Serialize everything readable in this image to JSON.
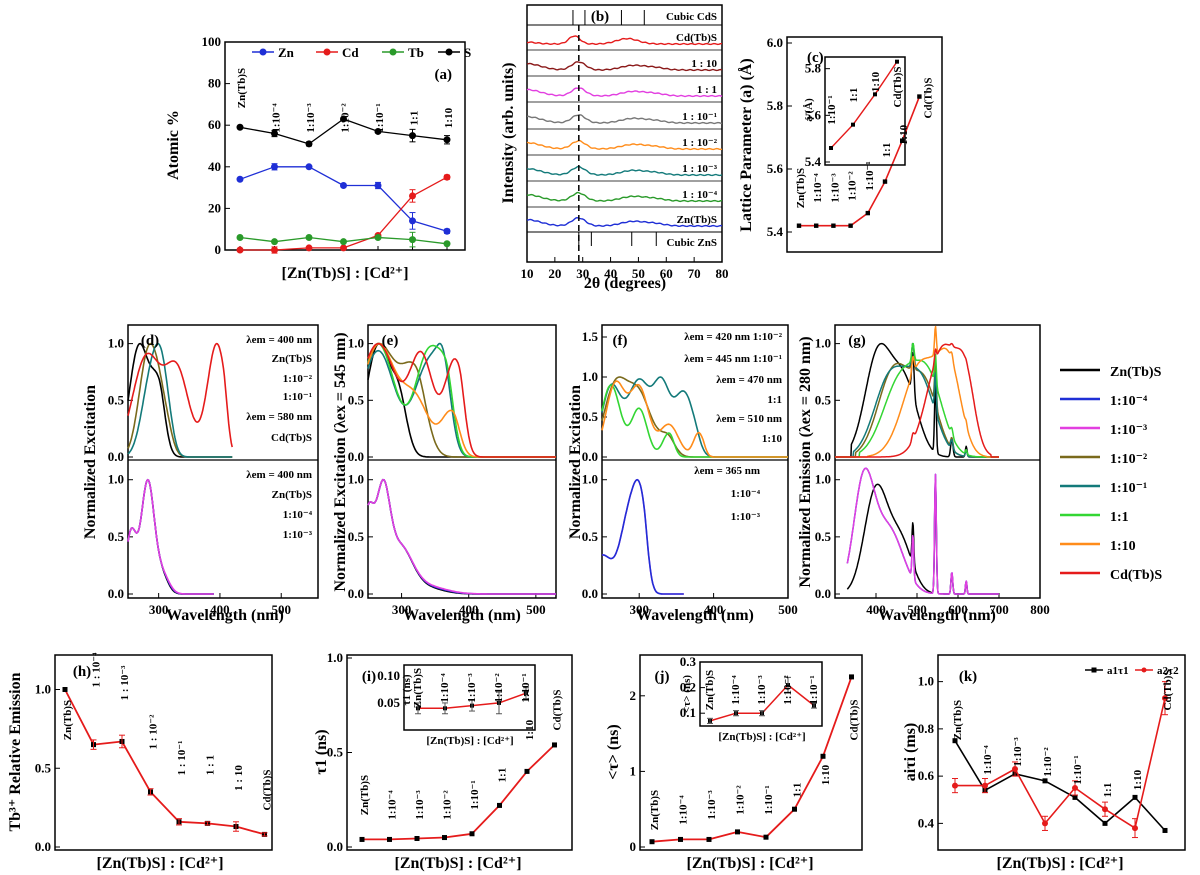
{
  "colors": {
    "ZnTbS": "#000000",
    "r1e4": "#1f2fd6",
    "r1e3": "#e23fe0",
    "r1e2": "#7a6a1c",
    "r1e1": "#137a7a",
    "r1_1": "#33d633",
    "r1_10": "#ff8c1a",
    "CdTbS": "#e51b1b",
    "fit_red": "#e51b1b"
  },
  "legend": {
    "items": [
      {
        "label": "Zn(Tb)S",
        "color": "#000000"
      },
      {
        "label": "1:10⁻⁴",
        "color": "#1f2fd6"
      },
      {
        "label": "1:10⁻³",
        "color": "#e23fe0"
      },
      {
        "label": "1:10⁻²",
        "color": "#7a6a1c"
      },
      {
        "label": "1:10⁻¹",
        "color": "#137a7a"
      },
      {
        "label": "1:1",
        "color": "#33d633"
      },
      {
        "label": "1:10",
        "color": "#ff8c1a"
      },
      {
        "label": "Cd(Tb)S",
        "color": "#e51b1b"
      }
    ]
  },
  "chart_data": [
    {
      "id": "a",
      "panel_label": "(a)",
      "type": "line",
      "xlabel": "[Zn(Tb)S] : [Cd²⁺]",
      "ylabel": "Atomic %",
      "ylim": [
        0,
        100
      ],
      "yticks": [
        "0",
        "20",
        "40",
        "60",
        "80",
        "100"
      ],
      "categories": [
        "Zn(Tb)S",
        "1:10⁻⁴",
        "1:10⁻³",
        "1:10⁻²",
        "1:10⁻¹",
        "1:1",
        "1:10"
      ],
      "series": [
        {
          "name": "Zn",
          "color": "#1f2fd6",
          "values": [
            34,
            40,
            40,
            31,
            31,
            14,
            9
          ]
        },
        {
          "name": "Cd",
          "color": "#e51b1b",
          "values": [
            0,
            0,
            1,
            1,
            7,
            26,
            35
          ]
        },
        {
          "name": "Tb",
          "color": "#2a9a2a",
          "values": [
            6,
            4,
            6,
            4,
            6,
            5,
            3
          ]
        },
        {
          "name": "S",
          "color": "#000000",
          "values": [
            59,
            56,
            51,
            63,
            57,
            55,
            53
          ]
        }
      ]
    },
    {
      "id": "b",
      "panel_label": "(b)",
      "type": "line",
      "xlabel": "2θ (degrees)",
      "ylabel": "Intensity (arb. units)",
      "xlim": [
        10,
        80
      ],
      "xticks": [
        "10",
        "20",
        "30",
        "40",
        "50",
        "60",
        "70",
        "80"
      ],
      "reference_top": {
        "label": "Cubic CdS",
        "peaks": [
          26.5,
          30.8,
          43.9,
          52.1
        ]
      },
      "reference_bottom": {
        "label": "Cubic ZnS",
        "peaks": [
          28.6,
          33.1,
          47.6,
          56.4
        ]
      },
      "dashed_line_x": 28.6,
      "series": [
        {
          "name": "Cd(Tb)S",
          "label": "Cd(Tb)S",
          "color": "#e51b1b"
        },
        {
          "name": "1:10",
          "label": "1 : 10",
          "color": "#8b1a1a"
        },
        {
          "name": "1:1",
          "label": "1 : 1",
          "color": "#e23fe0"
        },
        {
          "name": "1:10⁻¹",
          "label": "1 : 10⁻¹",
          "color": "#777777"
        },
        {
          "name": "1:10⁻²",
          "label": "1 : 10⁻²",
          "color": "#ff8c1a"
        },
        {
          "name": "1:10⁻³",
          "label": "1 : 10⁻³",
          "color": "#137a7a"
        },
        {
          "name": "1:10⁻⁴",
          "label": "1 : 10⁻⁴",
          "color": "#2a9a2a"
        },
        {
          "name": "Zn(Tb)S",
          "label": "Zn(Tb)S",
          "color": "#1f2fd6"
        }
      ]
    },
    {
      "id": "c",
      "panel_label": "(c)",
      "type": "line",
      "xlabel": "",
      "ylabel": "Lattice Parameter (a) (Å)",
      "ylim": [
        5.4,
        6.0
      ],
      "yticks": [
        "5.4",
        "5.6",
        "5.8",
        "6.0"
      ],
      "categories": [
        "Zn(Tb)S",
        "1:10⁻⁴",
        "1:10⁻³",
        "1:10⁻²",
        "1:10⁻¹",
        "1:1",
        "1:10",
        "Cd(Tb)S"
      ],
      "values": [
        5.42,
        5.42,
        5.42,
        5.42,
        5.46,
        5.56,
        5.69,
        5.83
      ],
      "inset": {
        "ylabel": "a (Å)",
        "ylim": [
          5.4,
          5.85
        ],
        "yticks": [
          "5.4",
          "5.6",
          "5.8"
        ],
        "categories": [
          "1:10⁻¹",
          "1:1",
          "1:10",
          "Cd(Tb)S"
        ],
        "values": [
          5.46,
          5.56,
          5.69,
          5.83
        ]
      }
    },
    {
      "id": "d",
      "panel_label": "(d)",
      "type": "line",
      "xlabel": "Wavelength (nm)",
      "ylabel": "Normalized Excitation",
      "xlim": [
        250,
        560
      ],
      "xticks": [
        "300",
        "400",
        "500"
      ],
      "top_annotations": [
        "λem = 400 nm",
        "Zn(Tb)S",
        "1:10⁻²",
        "1:10⁻¹",
        "λem = 580 nm",
        "Cd(Tb)S"
      ],
      "bottom_annotations": [
        "λem = 400 nm",
        "Zn(Tb)S",
        "1:10⁻⁴",
        "1:10⁻³"
      ],
      "yticks": [
        "0.0",
        "0.5",
        "1.0"
      ]
    },
    {
      "id": "e",
      "panel_label": "(e)",
      "type": "line",
      "xlabel": "Wavelength (nm)",
      "ylabel": "Normalized Excitation (λex = 545 nm)",
      "xlim": [
        250,
        530
      ],
      "xticks": [
        "300",
        "400",
        "500"
      ],
      "yticks": [
        "0.0",
        "0.5",
        "1.0"
      ]
    },
    {
      "id": "f",
      "panel_label": "(f)",
      "type": "line",
      "xlabel": "Wavelength (nm)",
      "ylabel": "Normalized Excitation",
      "xlim": [
        250,
        500
      ],
      "xticks": [
        "300",
        "400",
        "500"
      ],
      "top_yticks": [
        "0.0",
        "0.5",
        "1.0",
        "1.5"
      ],
      "yticks": [
        "0.0",
        "0.5",
        "1.0"
      ],
      "top_annotations": [
        "λem = 420 nm 1:10⁻²",
        "λem = 445 nm 1:10⁻¹",
        "λem = 470 nm",
        "1:1",
        "λem = 510 nm",
        "1:10"
      ],
      "bottom_annotations": [
        "λem = 365 nm",
        "1:10⁻⁴",
        "1:10⁻³"
      ]
    },
    {
      "id": "g",
      "panel_label": "(g)",
      "type": "line",
      "xlabel": "Wavelength (nm)",
      "ylabel": "Normalized Emission (λex = 280 nm)",
      "xlim": [
        300,
        800
      ],
      "xticks": [
        "400",
        "500",
        "600",
        "700",
        "800"
      ],
      "yticks": [
        "0.0",
        "0.5",
        "1.0"
      ]
    },
    {
      "id": "h",
      "panel_label": "(h)",
      "type": "line",
      "xlabel": "[Zn(Tb)S] : [Cd²⁺]",
      "ylabel": "Tb³⁺ Relative Emission",
      "ylim": [
        0,
        1.2
      ],
      "yticks": [
        "0.0",
        "0.5",
        "1.0"
      ],
      "categories": [
        "Zn(Tb)S",
        "1 : 10⁻⁴",
        "1 : 10⁻³",
        "1 : 10⁻²",
        "1 : 10⁻¹",
        "1 : 1",
        "1 : 10",
        "Cd(Tb)S"
      ],
      "values": [
        1.0,
        0.65,
        0.67,
        0.35,
        0.16,
        0.15,
        0.13,
        0.08
      ]
    },
    {
      "id": "i",
      "panel_label": "(i)",
      "type": "line",
      "xlabel": "[Zn(Tb)S] : [Cd²⁺]",
      "ylabel": "τ1 (ns)",
      "ylim": [
        0,
        1.0
      ],
      "yticks": [
        "0.0",
        "0.5",
        "1.0"
      ],
      "categories": [
        "Zn(Tb)S",
        "1:10⁻⁴",
        "1:10⁻³",
        "1:10⁻²",
        "1:10⁻¹",
        "1:1",
        "1:10",
        "Cd(Tb)S"
      ],
      "values": [
        0.04,
        0.04,
        0.045,
        0.05,
        0.07,
        0.22,
        0.4,
        0.54
      ],
      "inset": {
        "ylabel": "τ1 (ns)",
        "xlabel": "[Zn(Tb)S] : [Cd²⁺]",
        "ylim": [
          0.0,
          0.12
        ],
        "yticks": [
          "0.05",
          "0.10"
        ],
        "categories": [
          "Zn(Tb)S",
          "1:10⁻⁴",
          "1:10⁻³",
          "1:10⁻²",
          "1:10⁻¹"
        ],
        "values": [
          0.04,
          0.04,
          0.045,
          0.05,
          0.068
        ]
      }
    },
    {
      "id": "j",
      "panel_label": "(j)",
      "type": "line",
      "xlabel": "[Zn(Tb)S] : [Cd²⁺]",
      "ylabel": "<τ> (ns)",
      "ylim": [
        0,
        2.5
      ],
      "yticks": [
        "0",
        "1",
        "2"
      ],
      "categories": [
        "Zn(Tb)S",
        "1:10⁻⁴",
        "1:10⁻³",
        "1:10⁻²",
        "1:10⁻¹",
        "1:1",
        "1:10",
        "Cd(Tb)S"
      ],
      "values": [
        0.07,
        0.1,
        0.1,
        0.2,
        0.13,
        0.5,
        1.2,
        2.25
      ],
      "inset": {
        "ylabel": "<τ> (ns)",
        "xlabel": "[Zn(Tb)S] : [Cd²⁺]",
        "ylim": [
          0.05,
          0.3
        ],
        "yticks": [
          "0.1",
          "0.2",
          "0.3"
        ],
        "categories": [
          "Zn(Tb)S",
          "1:10⁻⁴",
          "1:10⁻³",
          "1:10⁻²",
          "1:10⁻¹"
        ],
        "values": [
          0.07,
          0.1,
          0.1,
          0.21,
          0.13
        ]
      }
    },
    {
      "id": "k",
      "panel_label": "(k)",
      "type": "line",
      "xlabel": "[Zn(Tb)S] : [Cd²⁺]",
      "ylabel": "aiτi (ms)",
      "ylim": [
        0.3,
        1.1
      ],
      "yticks": [
        "0.4",
        "0.6",
        "0.8",
        "1.0"
      ],
      "categories": [
        "Zn(Tb)S",
        "1:10⁻⁴",
        "1:10⁻³",
        "1:10⁻²",
        "1:10⁻¹",
        "1:1",
        "1:10",
        "Cd(Tb)S"
      ],
      "series": [
        {
          "name": "a1τ1",
          "color": "#000000",
          "values": [
            0.75,
            0.54,
            0.61,
            0.58,
            0.51,
            0.4,
            0.51,
            0.37
          ]
        },
        {
          "name": "a2τ2",
          "color": "#e51b1b",
          "values": [
            0.56,
            0.56,
            0.63,
            0.4,
            0.55,
            0.46,
            0.38,
            0.93
          ]
        }
      ]
    }
  ]
}
